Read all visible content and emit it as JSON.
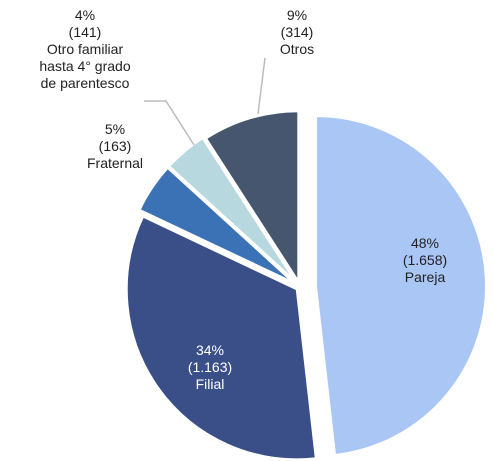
{
  "chart_data": {
    "type": "pie",
    "categories": [
      "Pareja",
      "Filial",
      "Fraternal",
      "Otro familiar\nhasta 4° grado\nde parentesco",
      "Otros"
    ],
    "values": [
      1658,
      1163,
      163,
      141,
      314
    ],
    "value_labels": [
      "(1.658)",
      "(1.163)",
      "(163)",
      "(141)",
      "(314)"
    ],
    "percents": [
      48,
      34,
      5,
      4,
      9
    ],
    "percent_labels": [
      "48%",
      "34%",
      "5%",
      "4%",
      "9%"
    ],
    "colors": [
      "#a9c6f5",
      "#3a4f87",
      "#3a72b5",
      "#b8d8e0",
      "#46566e"
    ]
  }
}
